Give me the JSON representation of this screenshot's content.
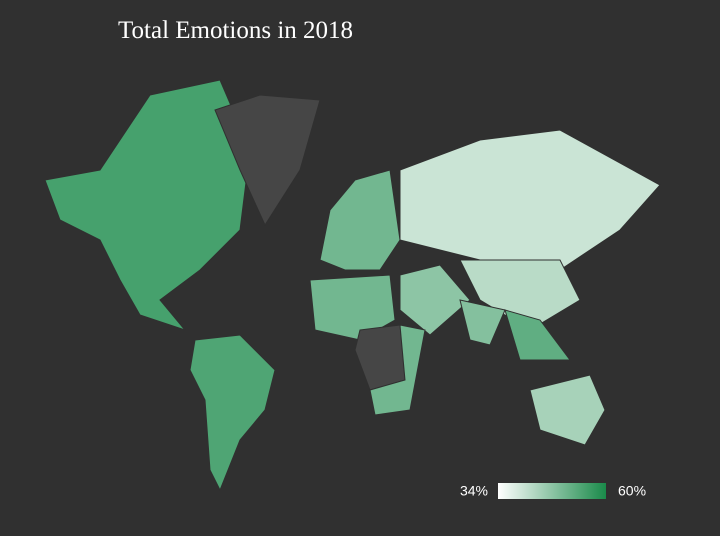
{
  "chart_data": {
    "type": "choropleth",
    "title": "Total Emotions in 2018",
    "values": [
      55,
      null,
      54,
      50,
      40,
      47,
      50,
      null,
      50,
      42,
      48,
      52,
      44
    ],
    "colorscale": {
      "min": {
        "value": 34,
        "label": "34%"
      },
      "max": {
        "value": 60,
        "label": "60%"
      },
      "colors": [
        "#ffffff",
        "#1a8a4a"
      ]
    },
    "missing_color": "#464646"
  }
}
